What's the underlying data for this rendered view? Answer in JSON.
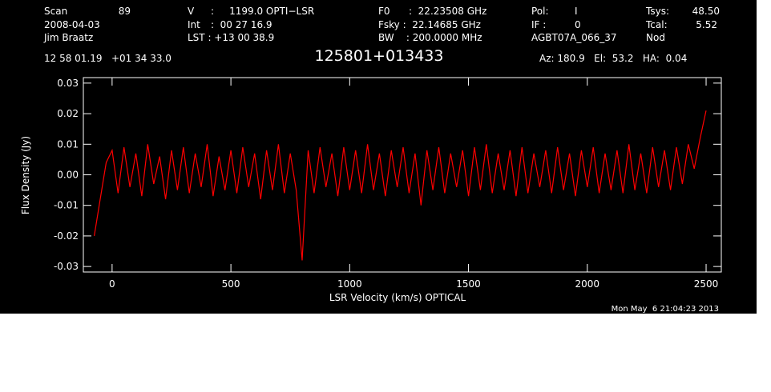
{
  "header": {
    "items": [
      "Scan",
      "89",
      "2008-04-03",
      "Jim Braatz",
      "V",
      ":     1199.0 OPTI−LSR",
      "Int",
      ":  00 27 16.9",
      "LST : +13 00 38.9",
      "F0",
      ":  22.23508 GHz",
      "Fsky :  22.14685 GHz",
      "BW    : 200.0000 MHz",
      "Pol:",
      "I",
      "IF :",
      "0",
      "AGBT07A_066_37",
      "Tsys:",
      "48.50",
      "Tcal:",
      "5.52",
      "Nod",
      "12 58 01.19   +01 34 33.0",
      "Az: 180.9   El:  53.2   HA:  0.04"
    ],
    "timestamp": "Mon May  6 21:04:23 2013"
  },
  "chart_data": {
    "type": "line",
    "title": "125801+013433",
    "x_label": "LSR Velocity (km/s) OPTICAL",
    "y_label": "Flux Density (Jy)",
    "xlim": [
      -121,
      2564
    ],
    "ylim": [
      -0.0318,
      0.0318
    ],
    "xticks": [
      0,
      500,
      1000,
      1500,
      2000,
      2500
    ],
    "yticks": [
      -0.03,
      -0.02,
      -0.01,
      {
        "value": 0,
        "label": "0.00"
      },
      0.01,
      0.02,
      0.03
    ],
    "x": [
      -75,
      -50,
      -25,
      0,
      25,
      50,
      75,
      100,
      125,
      150,
      175,
      200,
      225,
      250,
      275,
      300,
      325,
      350,
      375,
      400,
      425,
      450,
      475,
      500,
      525,
      550,
      575,
      600,
      625,
      650,
      675,
      700,
      725,
      750,
      775,
      800,
      825,
      850,
      875,
      900,
      925,
      950,
      975,
      1000,
      1025,
      1050,
      1075,
      1100,
      1125,
      1150,
      1175,
      1200,
      1225,
      1250,
      1275,
      1300,
      1325,
      1350,
      1375,
      1400,
      1425,
      1450,
      1475,
      1500,
      1525,
      1550,
      1575,
      1600,
      1625,
      1650,
      1675,
      1700,
      1725,
      1750,
      1775,
      1800,
      1825,
      1850,
      1875,
      1900,
      1925,
      1950,
      1975,
      2000,
      2025,
      2050,
      2075,
      2100,
      2125,
      2150,
      2175,
      2200,
      2225,
      2250,
      2275,
      2300,
      2325,
      2350,
      2375,
      2400,
      2425,
      2450,
      2475,
      2500
    ],
    "series": [
      {
        "color": "#ff0000",
        "values": [
          -0.02,
          -0.008,
          0.004,
          0.008,
          -0.006,
          0.009,
          -0.004,
          0.007,
          -0.007,
          0.01,
          -0.003,
          0.006,
          -0.008,
          0.008,
          -0.005,
          0.009,
          -0.006,
          0.007,
          -0.004,
          0.01,
          -0.007,
          0.006,
          -0.005,
          0.008,
          -0.006,
          0.009,
          -0.004,
          0.007,
          -0.008,
          0.008,
          -0.005,
          0.01,
          -0.006,
          0.007,
          -0.005,
          -0.028,
          0.008,
          -0.006,
          0.009,
          -0.004,
          0.007,
          -0.007,
          0.009,
          -0.005,
          0.008,
          -0.006,
          0.01,
          -0.005,
          0.007,
          -0.007,
          0.008,
          -0.004,
          0.009,
          -0.006,
          0.007,
          -0.01,
          0.008,
          -0.005,
          0.009,
          -0.006,
          0.007,
          -0.004,
          0.008,
          -0.007,
          0.009,
          -0.005,
          0.01,
          -0.006,
          0.007,
          -0.005,
          0.008,
          -0.007,
          0.009,
          -0.006,
          0.007,
          -0.004,
          0.008,
          -0.006,
          0.009,
          -0.005,
          0.007,
          -0.007,
          0.008,
          -0.004,
          0.009,
          -0.006,
          0.007,
          -0.005,
          0.008,
          -0.006,
          0.01,
          -0.005,
          0.007,
          -0.006,
          0.009,
          -0.004,
          0.008,
          -0.005,
          0.009,
          -0.003,
          0.01,
          0.002,
          0.012,
          0.021
        ]
      }
    ]
  }
}
